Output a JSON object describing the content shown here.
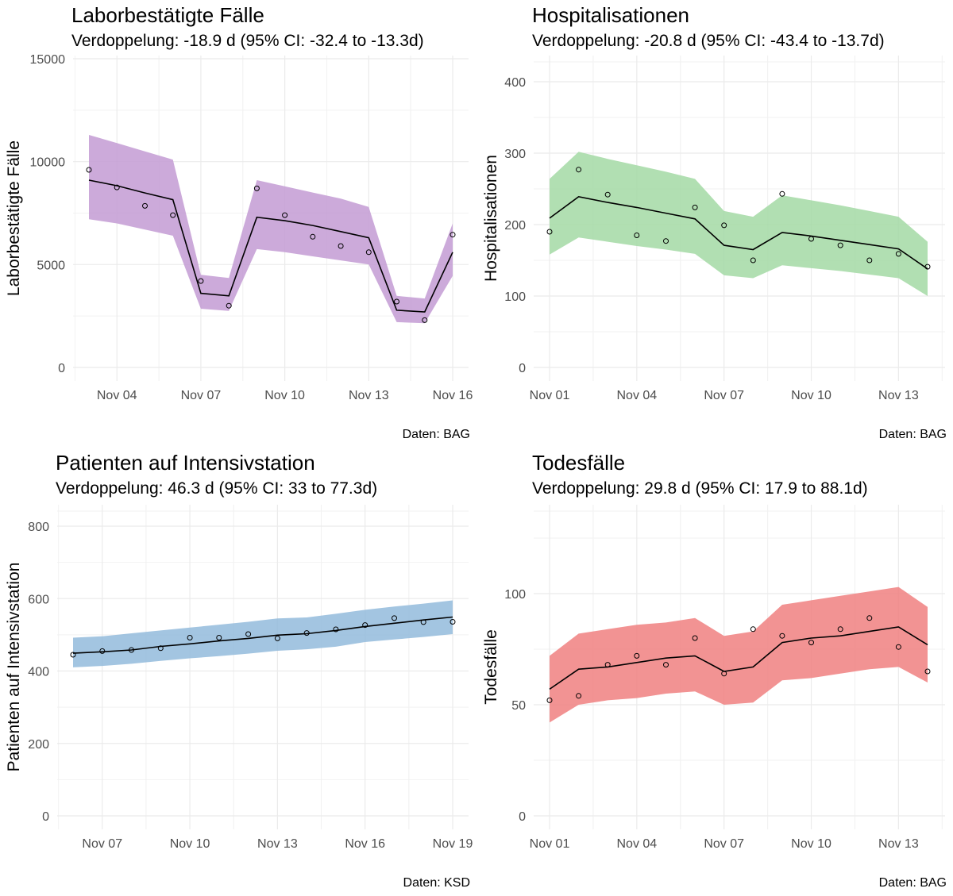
{
  "chart_data": [
    {
      "type": "line",
      "title": "Laborbestätigte Fälle",
      "subtitle": "Verdoppelung: -18.9 d (95% CI: -32.4 to -13.3d)",
      "ylabel": "Laborbestätigte Fälle",
      "caption": "Daten: BAG",
      "color": "#c39bd3",
      "ylim": [
        0,
        15000
      ],
      "y_ticks": [
        0,
        5000,
        10000,
        15000
      ],
      "x_ticks": [
        "Nov 04",
        "Nov 07",
        "Nov 10",
        "Nov 13",
        "Nov 16"
      ],
      "x": [
        "2020-11-03",
        "2020-11-04",
        "2020-11-05",
        "2020-11-06",
        "2020-11-07",
        "2020-11-08",
        "2020-11-09",
        "2020-11-10",
        "2020-11-11",
        "2020-11-12",
        "2020-11-13",
        "2020-11-14",
        "2020-11-15",
        "2020-11-16"
      ],
      "series": [
        {
          "values": [
            9600,
            8750,
            7850,
            7400,
            4200,
            3000,
            8700,
            7400,
            6350,
            5900,
            5600,
            3200,
            2300,
            6450
          ]
        },
        {
          "values": [
            9100,
            8830,
            8480,
            8150,
            3600,
            3480,
            7300,
            7130,
            6900,
            6600,
            6300,
            2780,
            2700,
            5600
          ]
        },
        {
          "values": [
            7200,
            7000,
            6700,
            6400,
            2850,
            2750,
            5750,
            5600,
            5400,
            5200,
            5000,
            2200,
            2150,
            4450
          ]
        },
        {
          "values": [
            11300,
            10900,
            10500,
            10100,
            4500,
            4350,
            9100,
            8800,
            8500,
            8200,
            7800,
            3480,
            3350,
            7000
          ]
        }
      ]
    },
    {
      "type": "line",
      "title": "Hospitalisationen",
      "subtitle": "Verdoppelung: -20.8 d (95% CI: -43.4 to -13.7d)",
      "ylabel": "Hospitalisationen",
      "caption": "Daten: BAG",
      "color": "#a3d9a5",
      "ylim": [
        0,
        400
      ],
      "y_ticks": [
        0,
        100,
        200,
        300,
        400
      ],
      "x_ticks": [
        "Nov 01",
        "Nov 04",
        "Nov 07",
        "Nov 10",
        "Nov 13"
      ],
      "x": [
        "2020-11-01",
        "2020-11-02",
        "2020-11-03",
        "2020-11-04",
        "2020-11-05",
        "2020-11-06",
        "2020-11-07",
        "2020-11-08",
        "2020-11-09",
        "2020-11-10",
        "2020-11-11",
        "2020-11-12",
        "2020-11-13",
        "2020-11-14"
      ],
      "series": [
        {
          "values": [
            190,
            277,
            242,
            185,
            177,
            224,
            199,
            150,
            243,
            180,
            171,
            150,
            159,
            141
          ]
        },
        {
          "values": [
            209,
            239,
            231,
            224,
            216,
            208,
            171,
            165,
            189,
            184,
            178,
            172,
            166,
            138
          ]
        },
        {
          "values": [
            158,
            182,
            176,
            170,
            165,
            159,
            129,
            125,
            143,
            139,
            135,
            130,
            125,
            100
          ]
        },
        {
          "values": [
            264,
            302,
            292,
            283,
            274,
            264,
            219,
            211,
            241,
            234,
            227,
            219,
            211,
            176
          ]
        }
      ]
    },
    {
      "type": "line",
      "title": "Patienten auf Intensivstation",
      "subtitle": "Verdoppelung: 46.3 d (95% CI: 33 to 77.3d)",
      "ylabel": "Patienten auf Intensivstation",
      "caption": "Daten: KSD",
      "color": "#93bbdc",
      "ylim": [
        0,
        850
      ],
      "y_ticks": [
        0,
        200,
        400,
        600,
        800
      ],
      "x_ticks": [
        "Nov 07",
        "Nov 10",
        "Nov 13",
        "Nov 16",
        "Nov 19"
      ],
      "x": [
        "2020-11-06",
        "2020-11-07",
        "2020-11-08",
        "2020-11-09",
        "2020-11-10",
        "2020-11-11",
        "2020-11-12",
        "2020-11-13",
        "2020-11-14",
        "2020-11-15",
        "2020-11-16",
        "2020-11-17",
        "2020-11-18",
        "2020-11-19"
      ],
      "series": [
        {
          "values": [
            445,
            455,
            458,
            463,
            492,
            492,
            502,
            490,
            505,
            515,
            527,
            546,
            535,
            536
          ]
        },
        {
          "values": [
            449,
            453,
            458,
            468,
            475,
            483,
            490,
            499,
            503,
            512,
            523,
            532,
            541,
            549
          ]
        },
        {
          "values": [
            410,
            414,
            420,
            428,
            435,
            441,
            448,
            456,
            460,
            467,
            480,
            487,
            494,
            502
          ]
        },
        {
          "values": [
            492,
            496,
            504,
            512,
            520,
            528,
            536,
            545,
            548,
            558,
            569,
            578,
            586,
            595
          ]
        }
      ]
    },
    {
      "type": "line",
      "title": "Todesfälle",
      "subtitle": "Verdoppelung: 29.8 d (95% CI: 17.9 to 88.1d)",
      "ylabel": "Todesfälle",
      "caption": "Daten: BAG",
      "color": "#f08080",
      "ylim": [
        0,
        140
      ],
      "y_ticks": [
        0,
        50,
        100
      ],
      "x_ticks": [
        "Nov 01",
        "Nov 04",
        "Nov 07",
        "Nov 10",
        "Nov 13"
      ],
      "x": [
        "2020-11-01",
        "2020-11-02",
        "2020-11-03",
        "2020-11-04",
        "2020-11-05",
        "2020-11-06",
        "2020-11-07",
        "2020-11-08",
        "2020-11-09",
        "2020-11-10",
        "2020-11-11",
        "2020-11-12",
        "2020-11-13",
        "2020-11-14"
      ],
      "series": [
        {
          "values": [
            52,
            54,
            68,
            72,
            68,
            80,
            64,
            84,
            81,
            78,
            84,
            89,
            76,
            65
          ]
        },
        {
          "values": [
            57,
            66,
            67,
            69,
            71,
            72,
            65,
            67,
            78,
            80,
            81,
            83,
            85,
            77
          ]
        },
        {
          "values": [
            42,
            50,
            52,
            53,
            55,
            56,
            50,
            51,
            61,
            62,
            64,
            66,
            67,
            60
          ]
        },
        {
          "values": [
            72,
            82,
            84,
            86,
            87,
            89,
            81,
            83,
            95,
            97,
            99,
            101,
            103,
            94
          ]
        }
      ]
    }
  ]
}
